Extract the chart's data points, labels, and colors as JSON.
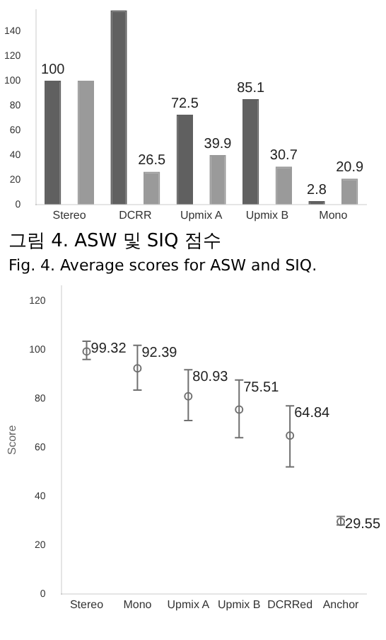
{
  "chart_data": [
    {
      "type": "bar",
      "categories": [
        "Stereo",
        "DCRR",
        "Upmix A",
        "Upmix B",
        "Mono"
      ],
      "series": [
        {
          "color": "#606060",
          "values": [
            100,
            157,
            72.5,
            85.1,
            2.8
          ],
          "value_labels": [
            "100",
            null,
            "72.5",
            "85.1",
            "2.8"
          ]
        },
        {
          "color": "#9a9a9a",
          "values": [
            100,
            26.5,
            39.9,
            30.7,
            20.9
          ],
          "value_labels": [
            null,
            "26.5",
            "39.9",
            "30.7",
            "20.9"
          ]
        }
      ],
      "ylim": [
        0,
        157
      ],
      "yticks": [
        0,
        20,
        40,
        60,
        80,
        100,
        120,
        140
      ],
      "grid": false,
      "annotations": [
        "그림 4. ASW 및 SIQ 점수",
        "Fig. 4. Average scores for ASW and SIQ."
      ]
    },
    {
      "type": "scatter",
      "ylabel": "Score",
      "categories": [
        "Stereo",
        "Mono",
        "Upmix A",
        "Upmix B",
        "DCRRed",
        "Anchor"
      ],
      "values": [
        99.32,
        92.39,
        80.93,
        75.51,
        64.84,
        29.55
      ],
      "color": "#707070",
      "errors": [
        [
          96,
          103.5
        ],
        [
          83.5,
          101.8
        ],
        [
          71,
          91.8
        ],
        [
          64,
          87.6
        ],
        [
          52,
          77
        ],
        [
          28.2,
          31.7
        ]
      ],
      "ylim": [
        0,
        126
      ],
      "yticks": [
        0,
        20,
        40,
        60,
        80,
        100,
        120
      ],
      "grid": false,
      "marker": "circle",
      "data_labels": true
    }
  ]
}
